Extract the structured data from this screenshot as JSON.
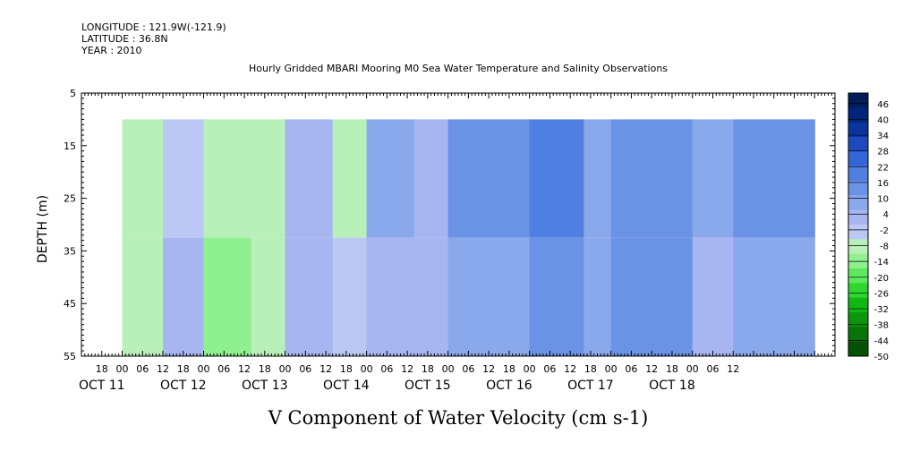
{
  "header": {
    "longitude": "LONGITUDE : 121.9W(-121.9)",
    "latitude": "LATITUDE : 36.8N",
    "year": "YEAR : 2010",
    "title": "Hourly Gridded MBARI Mooring M0 Sea Water Temperature and Salinity Observations"
  },
  "chart_data": {
    "type": "heatmap",
    "title": "Hourly Gridded MBARI Mooring M0 Sea Water Temperature and Salinity Observations",
    "xlabel": "V Component of Water Velocity (cm s-1)",
    "ylabel": "DEPTH (m)",
    "ylim": [
      55,
      5
    ],
    "y_ticks": [
      5,
      15,
      25,
      35,
      45,
      55
    ],
    "x_hour_ticks": [
      "18",
      "00",
      "06",
      "12",
      "18",
      "00",
      "06",
      "12",
      "18",
      "00",
      "06",
      "12",
      "18",
      "00",
      "06",
      "12",
      "18",
      "00",
      "06",
      "12",
      "18",
      "00",
      "06",
      "12",
      "18",
      "00",
      "06",
      "12",
      "18",
      "00",
      "06",
      "12"
    ],
    "x_day_labels": [
      "OCT 11",
      "OCT 12",
      "OCT 13",
      "OCT 14",
      "OCT 15",
      "OCT 16",
      "OCT 17",
      "OCT 18"
    ],
    "data_depth_range_m": [
      10,
      55
    ],
    "time_range_hours_from_oct11_00": [
      24,
      228
    ],
    "colorbar_levels": [
      46,
      40,
      34,
      28,
      22,
      16,
      10,
      4,
      -2,
      -8,
      -14,
      -20,
      -26,
      -32,
      -38,
      -44,
      -50
    ],
    "colorbar_bounds": [
      -50,
      50
    ],
    "colorbar_colors": [
      "#001d5a",
      "#00257a",
      "#0a35a0",
      "#1d4bbe",
      "#3366d6",
      "#4f7fe0",
      "#6a93e6",
      "#8aa8ec",
      "#a7b6f0",
      "#bcc8f4",
      "#b9f0b9",
      "#8ef08e",
      "#5ee85e",
      "#2fd62f",
      "#12b812",
      "#0b960b",
      "#077407",
      "#055205"
    ],
    "grid": false,
    "legend": "colorbar-right",
    "column_profile": [
      {
        "t_start": 24,
        "t_end": 36,
        "v_upper": -6,
        "v_lower": -8
      },
      {
        "t_start": 36,
        "t_end": 48,
        "v_upper": -4,
        "v_lower": 0
      },
      {
        "t_start": 48,
        "t_end": 62,
        "v_upper": -10,
        "v_lower": -16
      },
      {
        "t_start": 62,
        "t_end": 72,
        "v_upper": -8,
        "v_lower": -6
      },
      {
        "t_start": 72,
        "t_end": 86,
        "v_upper": 0,
        "v_lower": 2
      },
      {
        "t_start": 86,
        "t_end": 96,
        "v_upper": -6,
        "v_lower": -2
      },
      {
        "t_start": 96,
        "t_end": 110,
        "v_upper": 8,
        "v_lower": 4
      },
      {
        "t_start": 110,
        "t_end": 120,
        "v_upper": 2,
        "v_lower": 4
      },
      {
        "t_start": 120,
        "t_end": 144,
        "v_upper": 14,
        "v_lower": 10
      },
      {
        "t_start": 144,
        "t_end": 160,
        "v_upper": 18,
        "v_lower": 14
      },
      {
        "t_start": 160,
        "t_end": 168,
        "v_upper": 10,
        "v_lower": 6
      },
      {
        "t_start": 168,
        "t_end": 192,
        "v_upper": 16,
        "v_lower": 12
      },
      {
        "t_start": 192,
        "t_end": 204,
        "v_upper": 10,
        "v_lower": 2
      },
      {
        "t_start": 204,
        "t_end": 228,
        "v_upper": 16,
        "v_lower": 6
      }
    ]
  }
}
